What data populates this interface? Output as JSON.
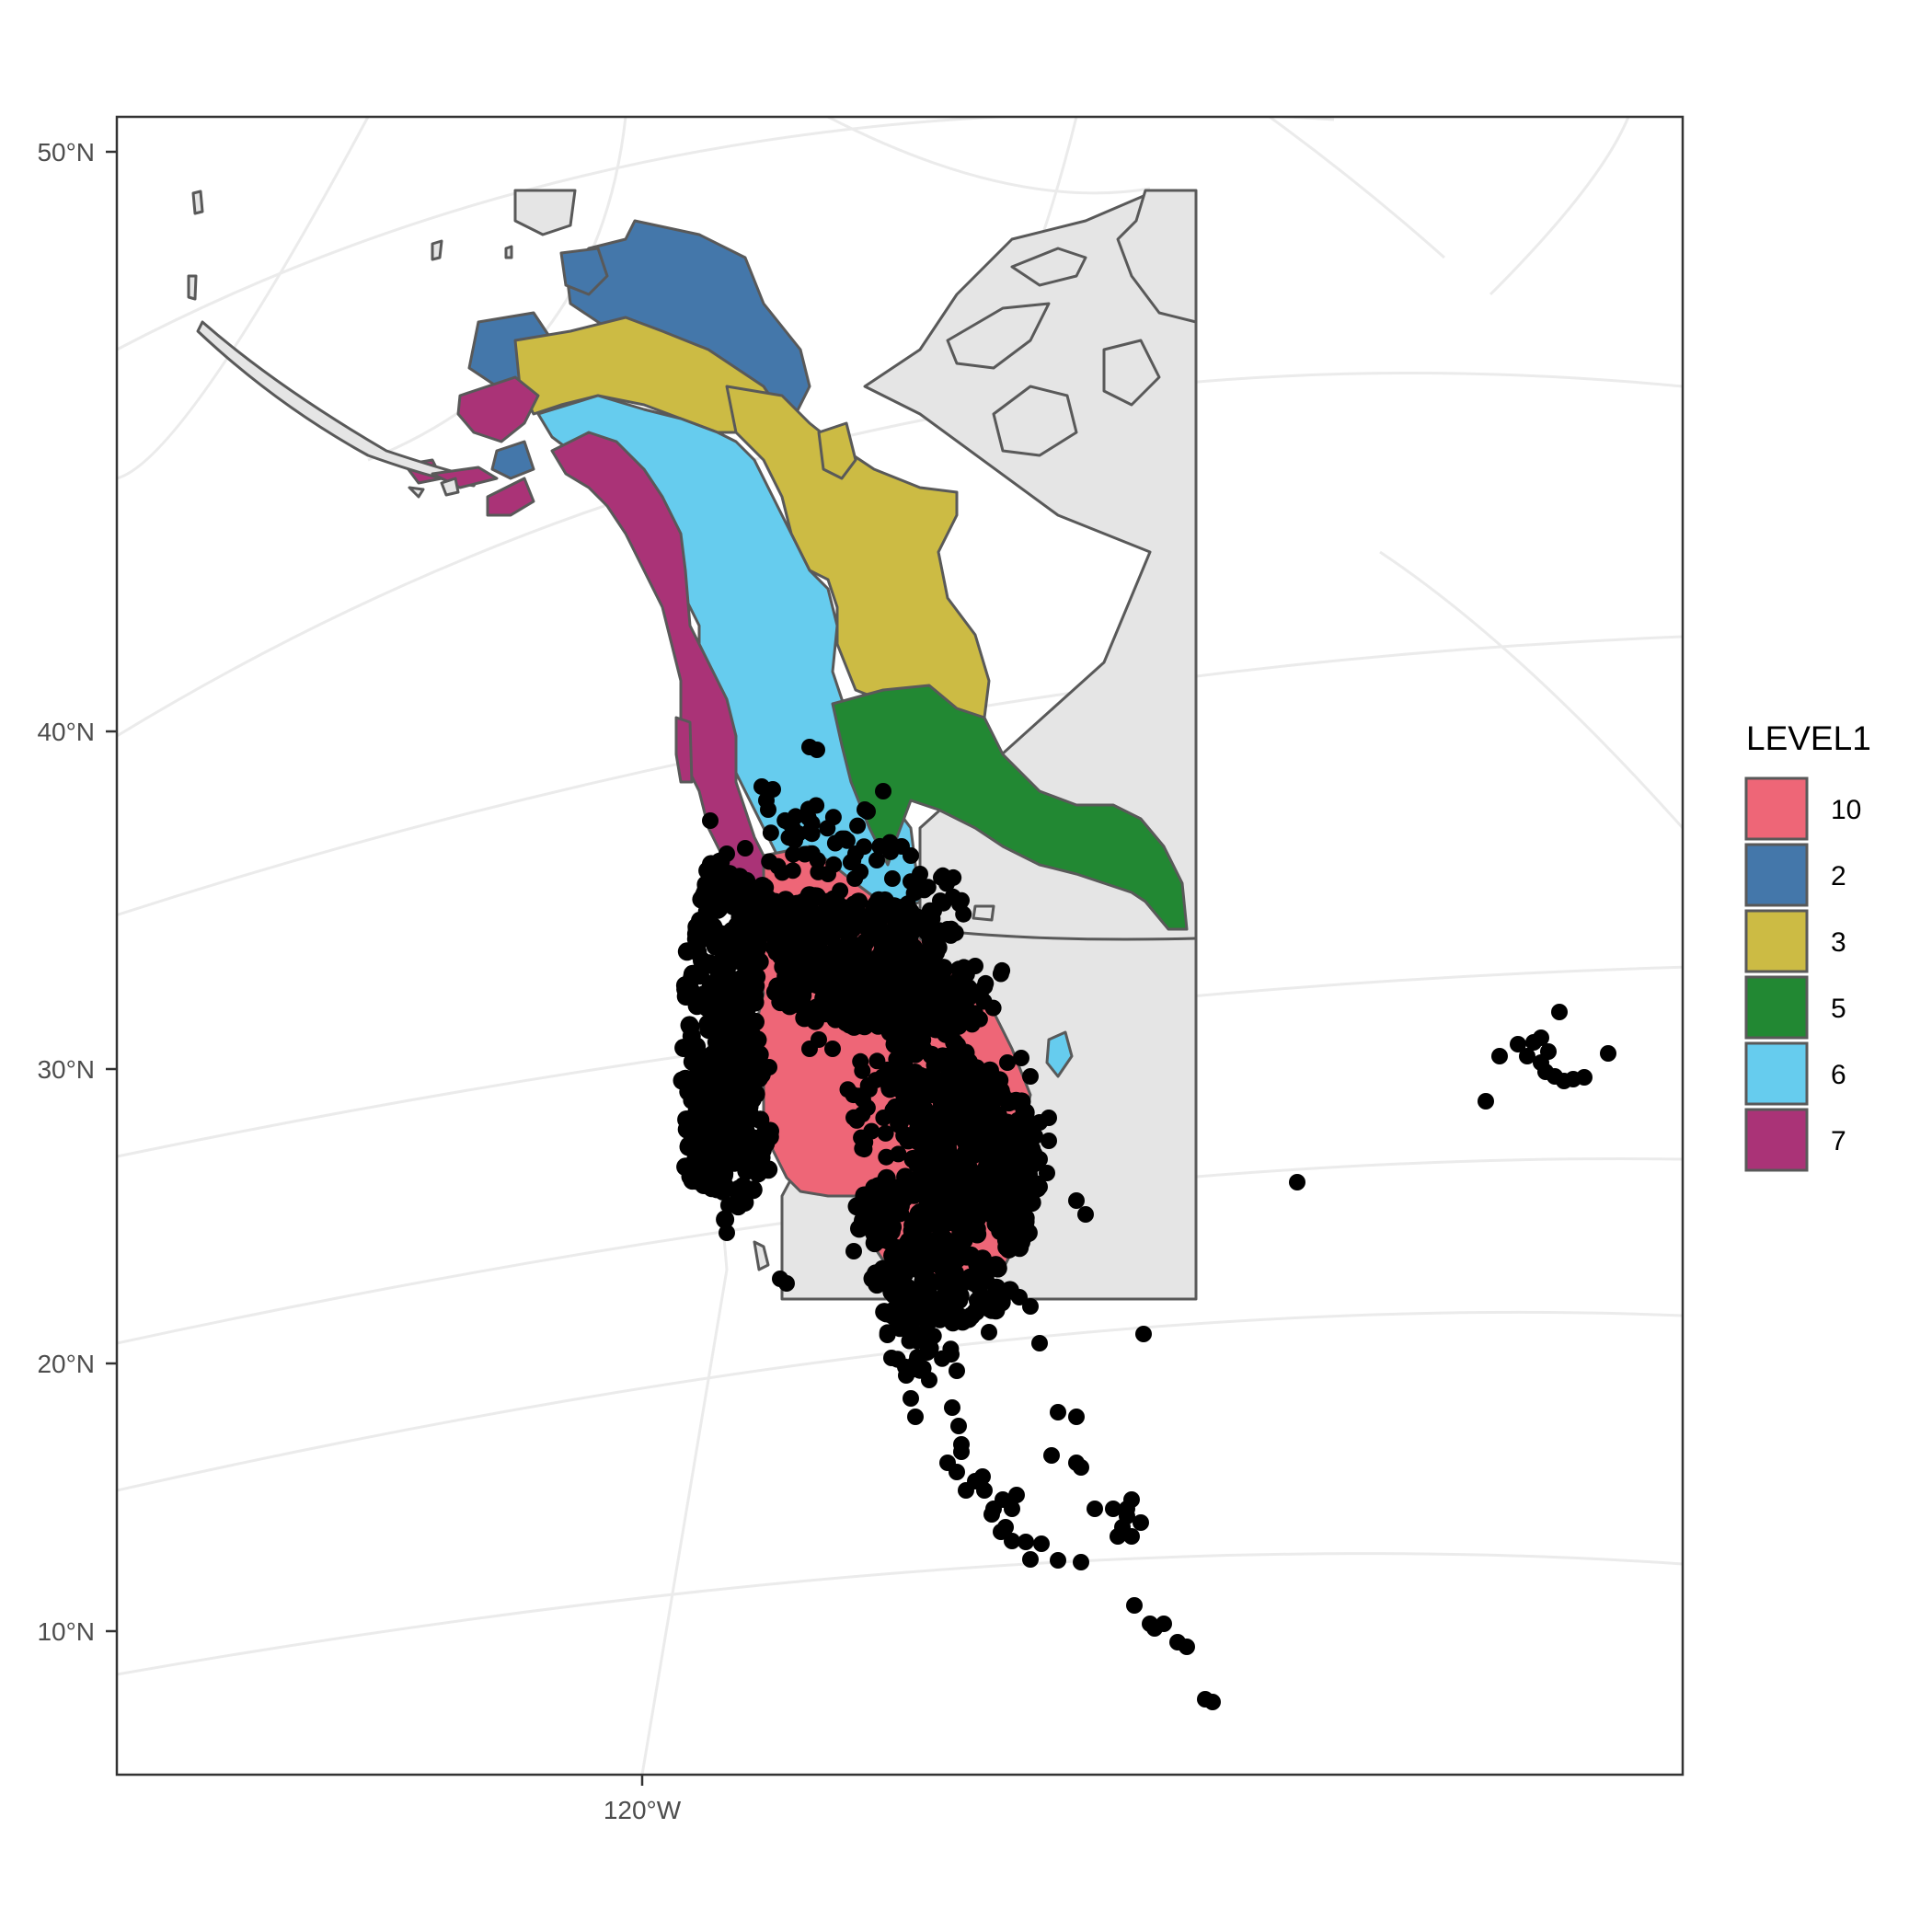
{
  "axes": {
    "y_ticks": [
      {
        "label": "50°N",
        "lat": 50
      },
      {
        "label": "40°N",
        "lat": 40
      },
      {
        "label": "30°N",
        "lat": 30
      },
      {
        "label": "20°N",
        "lat": 20
      },
      {
        "label": "10°N",
        "lat": 10
      }
    ],
    "x_ticks": [
      {
        "label": "120°W",
        "lon": -120
      }
    ]
  },
  "legend": {
    "title": "LEVEL1",
    "placement": "right",
    "items": [
      {
        "label": "10",
        "color": "#EE6677"
      },
      {
        "label": "2",
        "color": "#4477AA"
      },
      {
        "label": "3",
        "color": "#CCBB44"
      },
      {
        "label": "5",
        "color": "#228833"
      },
      {
        "label": "6",
        "color": "#66CCEE"
      },
      {
        "label": "7",
        "color": "#AA3377"
      }
    ]
  },
  "map": {
    "background_land_color": "#E5E5E5",
    "outline_color": "#595959",
    "point_color": "#000000",
    "grid": true,
    "regions": [
      "10",
      "2",
      "3",
      "5",
      "6",
      "7"
    ]
  }
}
